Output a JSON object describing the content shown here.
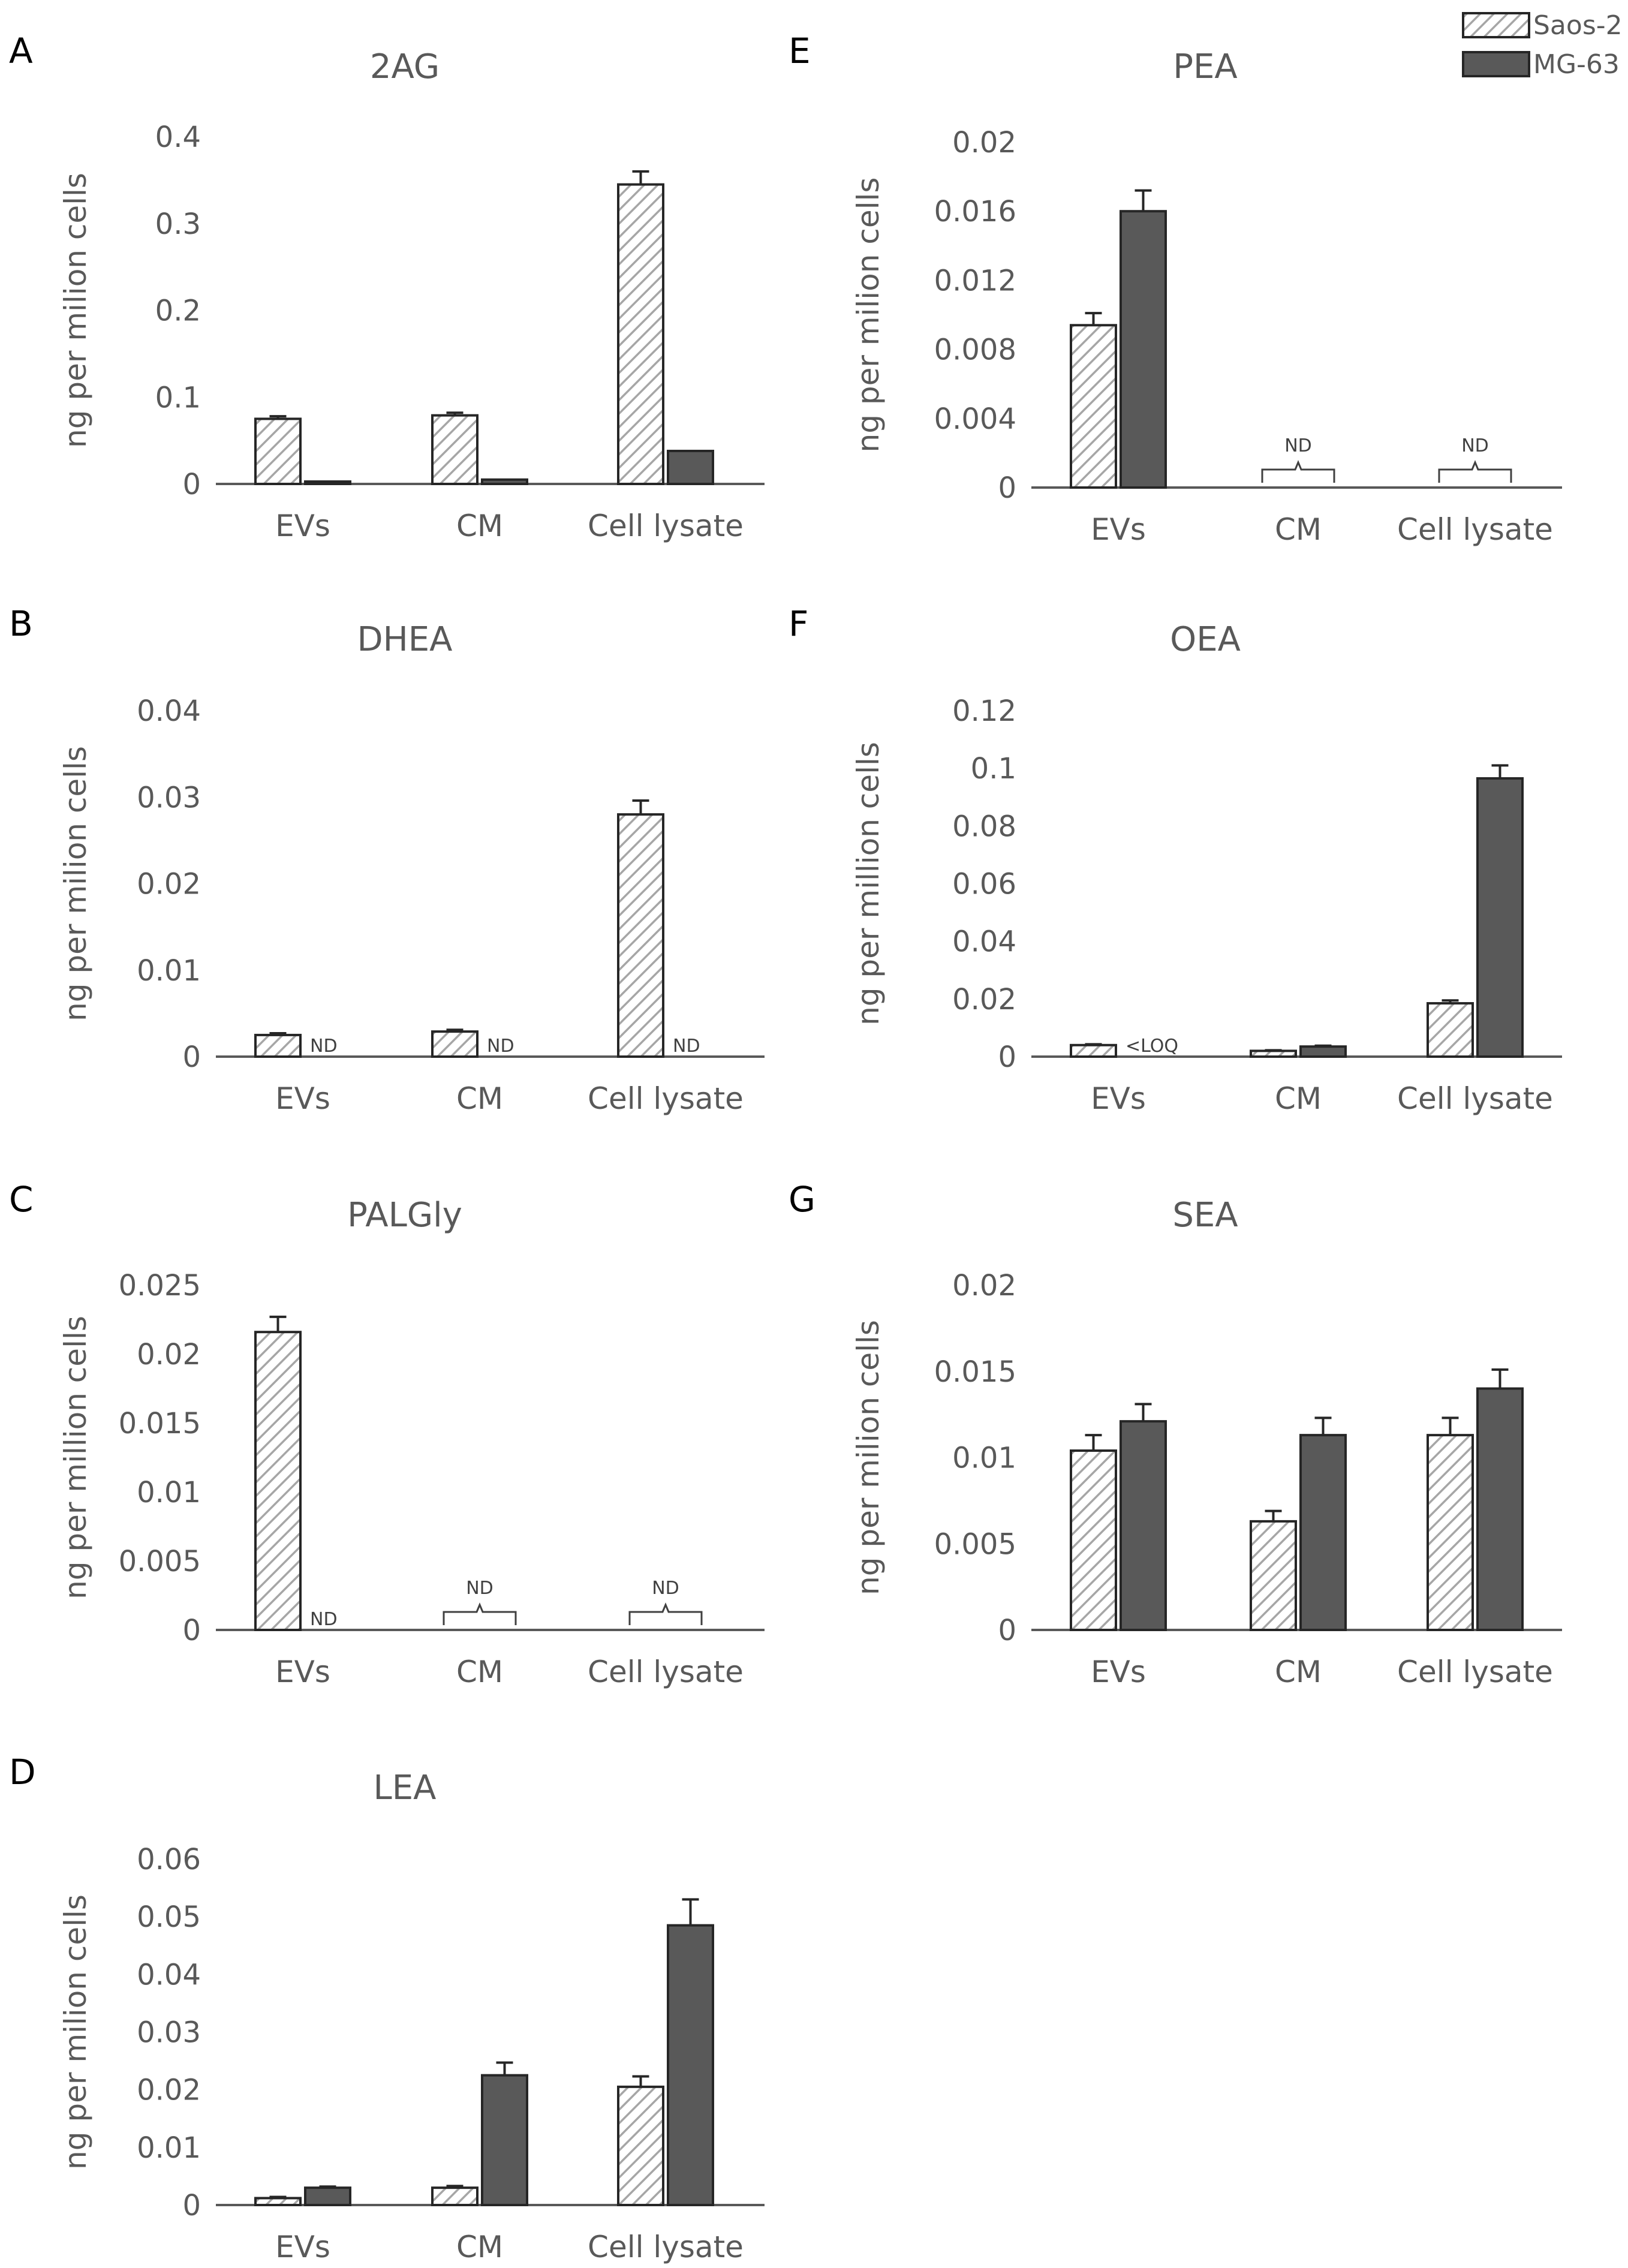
{
  "legend": {
    "entries": [
      {
        "name": "Saos-2",
        "style": "hatched"
      },
      {
        "name": "MG-63",
        "style": "solid"
      }
    ],
    "placement": "top-right"
  },
  "colors": {
    "solid_fill": "#595959",
    "hatch_line": "#a6a6a6",
    "axis": "#595959",
    "text": "#595959",
    "bar_outline": "#262626"
  },
  "chart_data": [
    {
      "panel": "A",
      "title": "2AG",
      "type": "bar",
      "ylabel": "ng per milion cells",
      "categories": [
        "EVs",
        "CM",
        "Cell lysate"
      ],
      "ylim": [
        0,
        0.4
      ],
      "yticks": [
        "0",
        "0.1",
        "0.2",
        "0.3",
        "0.4"
      ],
      "series": [
        {
          "name": "Saos-2",
          "values": [
            0.075,
            0.079,
            0.345
          ],
          "errors": [
            0.003,
            0.003,
            0.015
          ]
        },
        {
          "name": "MG-63",
          "values": [
            0.002,
            0.005,
            0.038
          ],
          "errors": [
            0,
            0,
            0
          ]
        }
      ],
      "annotations": []
    },
    {
      "panel": "B",
      "title": "DHEA",
      "type": "bar",
      "ylabel": "ng per milion cells",
      "categories": [
        "EVs",
        "CM",
        "Cell lysate"
      ],
      "ylim": [
        0,
        0.04
      ],
      "yticks": [
        "0",
        "0.01",
        "0.02",
        "0.03",
        "0.04"
      ],
      "series": [
        {
          "name": "Saos-2",
          "values": [
            0.0025,
            0.0029,
            0.028
          ],
          "errors": [
            0.0002,
            0.0002,
            0.0016
          ]
        },
        {
          "name": "MG-63",
          "values": [
            null,
            null,
            null
          ],
          "errors": [
            0,
            0,
            0
          ]
        }
      ],
      "annotations": [
        {
          "category": 0,
          "text": "ND",
          "kind": "beside"
        },
        {
          "category": 1,
          "text": "ND",
          "kind": "beside"
        },
        {
          "category": 2,
          "text": "ND",
          "kind": "beside"
        }
      ]
    },
    {
      "panel": "C",
      "title": "PALGly",
      "type": "bar",
      "ylabel": "ng per million cells",
      "categories": [
        "EVs",
        "CM",
        "Cell lysate"
      ],
      "ylim": [
        0,
        0.025
      ],
      "yticks": [
        "0",
        "0.005",
        "0.01",
        "0.015",
        "0.02",
        "0.025"
      ],
      "series": [
        {
          "name": "Saos-2",
          "values": [
            0.0216,
            null,
            null
          ],
          "errors": [
            0.0011,
            0,
            0
          ]
        },
        {
          "name": "MG-63",
          "values": [
            null,
            null,
            null
          ],
          "errors": [
            0,
            0,
            0
          ]
        }
      ],
      "annotations": [
        {
          "category": 0,
          "text": "ND",
          "kind": "beside"
        },
        {
          "category": 1,
          "text": "ND",
          "kind": "bracket"
        },
        {
          "category": 2,
          "text": "ND",
          "kind": "bracket"
        }
      ]
    },
    {
      "panel": "D",
      "title": "LEA",
      "type": "bar",
      "ylabel": "ng per milion cells",
      "categories": [
        "EVs",
        "CM",
        "Cell lysate"
      ],
      "ylim": [
        0,
        0.06
      ],
      "yticks": [
        "0",
        "0.01",
        "0.02",
        "0.03",
        "0.04",
        "0.05",
        "0.06"
      ],
      "series": [
        {
          "name": "Saos-2",
          "values": [
            0.0012,
            0.003,
            0.0205
          ],
          "errors": [
            0.0002,
            0.0003,
            0.0018
          ]
        },
        {
          "name": "MG-63",
          "values": [
            0.003,
            0.0225,
            0.0485
          ],
          "errors": [
            0.0002,
            0.0022,
            0.0045
          ]
        }
      ],
      "annotations": []
    },
    {
      "panel": "E",
      "title": "PEA",
      "type": "bar",
      "ylabel": "ng per milion cells",
      "categories": [
        "EVs",
        "CM",
        "Cell lysate"
      ],
      "ylim": [
        0,
        0.02
      ],
      "yticks": [
        "0",
        "0.004",
        "0.008",
        "0.012",
        "0.016",
        "0.02"
      ],
      "series": [
        {
          "name": "Saos-2",
          "values": [
            0.0094,
            null,
            null
          ],
          "errors": [
            0.0007,
            0,
            0
          ]
        },
        {
          "name": "MG-63",
          "values": [
            0.016,
            null,
            null
          ],
          "errors": [
            0.0012,
            0,
            0
          ]
        }
      ],
      "annotations": [
        {
          "category": 1,
          "text": "ND",
          "kind": "bracket"
        },
        {
          "category": 2,
          "text": "ND",
          "kind": "bracket"
        }
      ]
    },
    {
      "panel": "F",
      "title": "OEA",
      "type": "bar",
      "ylabel": "ng per million cells",
      "categories": [
        "EVs",
        "CM",
        "Cell lysate"
      ],
      "ylim": [
        0,
        0.12
      ],
      "yticks": [
        "0",
        "0.02",
        "0.04",
        "0.06",
        "0.08",
        "0.1",
        "0.12"
      ],
      "series": [
        {
          "name": "Saos-2",
          "values": [
            0.004,
            0.002,
            0.0185
          ],
          "errors": [
            0.0003,
            0.0002,
            0.001
          ]
        },
        {
          "name": "MG-63",
          "values": [
            null,
            0.0035,
            0.0965
          ],
          "errors": [
            0,
            0.0003,
            0.0045
          ]
        }
      ],
      "annotations": [
        {
          "category": 0,
          "text": "<LOQ",
          "kind": "beside"
        }
      ]
    },
    {
      "panel": "G",
      "title": "SEA",
      "type": "bar",
      "ylabel": "ng per milion cells",
      "categories": [
        "EVs",
        "CM",
        "Cell lysate"
      ],
      "ylim": [
        0,
        0.02
      ],
      "yticks": [
        "0",
        "0.005",
        "0.01",
        "0.015",
        "0.02"
      ],
      "series": [
        {
          "name": "Saos-2",
          "values": [
            0.0104,
            0.0063,
            0.0113
          ],
          "errors": [
            0.0009,
            0.0006,
            0.001
          ]
        },
        {
          "name": "MG-63",
          "values": [
            0.0121,
            0.0113,
            0.014
          ],
          "errors": [
            0.001,
            0.001,
            0.0011
          ]
        }
      ],
      "annotations": []
    }
  ]
}
